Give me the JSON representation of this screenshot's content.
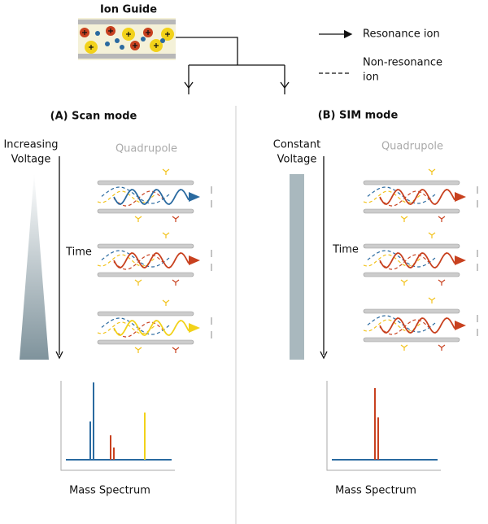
{
  "ion_guide": {
    "label": "Ion Guide"
  },
  "legend": {
    "resonance": "Resonance ion",
    "non_resonance": [
      "Non-resonance",
      "ion"
    ]
  },
  "panels": [
    {
      "title": "(A) Scan mode",
      "voltage_label": [
        "Increasing",
        "Voltage"
      ],
      "device_label": "Quadrupole",
      "time_label": "Time",
      "spectrum_label": "Mass Spectrum"
    },
    {
      "title": "(B) SIM mode",
      "voltage_label": [
        "Constant",
        "Voltage"
      ],
      "device_label": "Quadrupole",
      "time_label": "Time",
      "spectrum_label": "Mass Spectrum"
    }
  ]
}
